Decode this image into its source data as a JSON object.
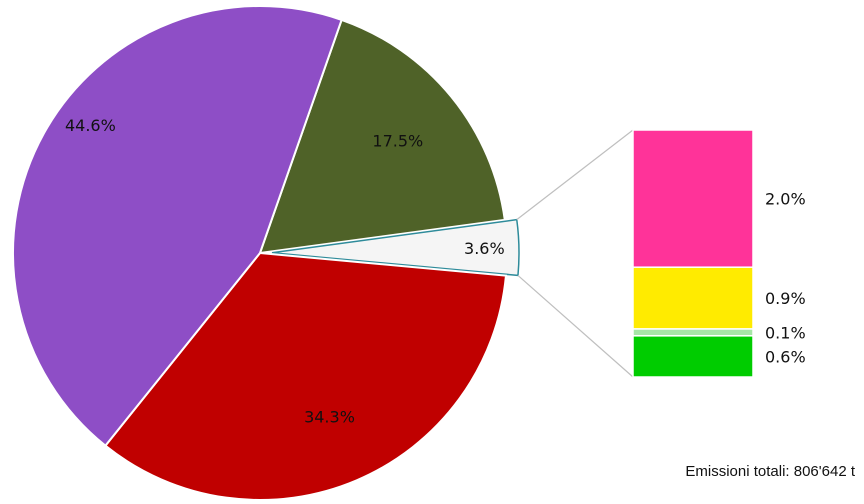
{
  "chart_data": {
    "type": "pie",
    "slices": [
      {
        "value": 17.5,
        "label": "17.5%",
        "color": "#4f6228"
      },
      {
        "value": 3.6,
        "label": "3.6%",
        "color": "#f5f5f5",
        "exploded": true
      },
      {
        "value": 34.3,
        "label": "34.3%",
        "color": "#c00000"
      },
      {
        "value": 44.6,
        "label": "44.6%",
        "color": "#8e4ec6"
      }
    ],
    "breakdown": {
      "of_slice": "3.6%",
      "type": "stacked-bar",
      "segments": [
        {
          "value": 2.0,
          "label": "2.0%",
          "color": "#ff3399"
        },
        {
          "value": 0.9,
          "label": "0.9%",
          "color": "#ffeb00"
        },
        {
          "value": 0.1,
          "label": "0.1%",
          "color": "#a6e6a6"
        },
        {
          "value": 0.6,
          "label": "0.6%",
          "color": "#00cc00"
        }
      ]
    },
    "note": "Emissioni totali: 806'642 t"
  }
}
